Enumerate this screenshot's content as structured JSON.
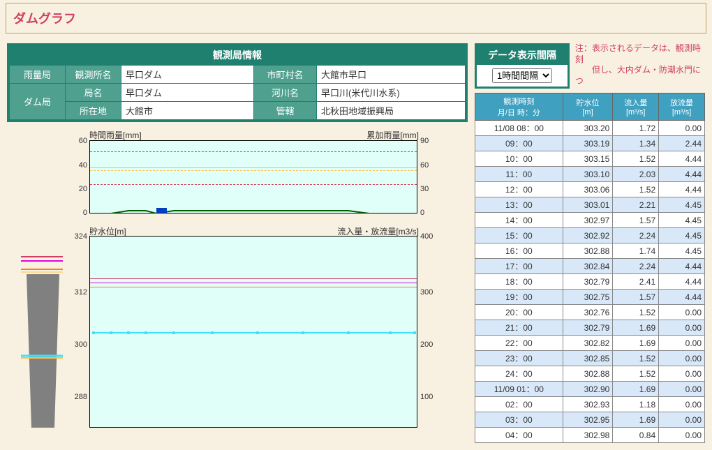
{
  "page_title": "ダムグラフ",
  "info": {
    "title": "観測局情報",
    "rows_left": [
      {
        "rowspan_label": "雨量局",
        "label": "観測所名",
        "value": "早口ダム"
      },
      {
        "rowspan_label": "ダム局",
        "label": "局名",
        "value": "早口ダム"
      },
      {
        "rowspan_label": null,
        "label": "所在地",
        "value": "大館市"
      }
    ],
    "rows_right": [
      {
        "label": "市町村名",
        "value": "大館市早口"
      },
      {
        "label": "河川名",
        "value": "早口川(米代川水系)"
      },
      {
        "label": "管轄",
        "value": "北秋田地域振興局"
      }
    ]
  },
  "interval": {
    "title": "データ表示間隔",
    "selected": "1時間間隔"
  },
  "note_top": "注：表示されるデータは、観測時刻",
  "note_bottom": "　　但し、大内ダム・防潮水門につ",
  "graph1": {
    "left_label": "時間雨量[mm]",
    "right_label": "累加雨量[mm]",
    "y_ticks": [
      "60",
      "40",
      "20",
      "0"
    ],
    "y2_ticks": [
      "90",
      "60",
      "30",
      "0"
    ]
  },
  "graph2": {
    "left_label": "貯水位[m]",
    "right_label": "流入量・放流量[m3/s]",
    "y_ticks": [
      "324",
      "312",
      "300",
      "288"
    ],
    "y2_ticks": [
      "400",
      "300",
      "200",
      "100"
    ]
  },
  "table": {
    "headers": [
      {
        "l1": "観測時刻",
        "l2": "月/日 時：分"
      },
      {
        "l1": "貯水位",
        "l2": "[m]"
      },
      {
        "l1": "流入量",
        "l2": "[m³/s]"
      },
      {
        "l1": "放流量",
        "l2": "[m³/s]"
      }
    ],
    "rows": [
      {
        "time": "11/08 08：00",
        "level": "303.20",
        "inflow": "1.72",
        "outflow": "0.00"
      },
      {
        "time": "09：00",
        "level": "303.19",
        "inflow": "1.34",
        "outflow": "2.44"
      },
      {
        "time": "10：00",
        "level": "303.15",
        "inflow": "1.52",
        "outflow": "4.44"
      },
      {
        "time": "11：00",
        "level": "303.10",
        "inflow": "2.03",
        "outflow": "4.44"
      },
      {
        "time": "12：00",
        "level": "303.06",
        "inflow": "1.52",
        "outflow": "4.44"
      },
      {
        "time": "13：00",
        "level": "303.01",
        "inflow": "2.21",
        "outflow": "4.45"
      },
      {
        "time": "14：00",
        "level": "302.97",
        "inflow": "1.57",
        "outflow": "4.45"
      },
      {
        "time": "15：00",
        "level": "302.92",
        "inflow": "2.24",
        "outflow": "4.45"
      },
      {
        "time": "16：00",
        "level": "302.88",
        "inflow": "1.74",
        "outflow": "4.45"
      },
      {
        "time": "17：00",
        "level": "302.84",
        "inflow": "2.24",
        "outflow": "4.44"
      },
      {
        "time": "18：00",
        "level": "302.79",
        "inflow": "2.41",
        "outflow": "4.44"
      },
      {
        "time": "19：00",
        "level": "302.75",
        "inflow": "1.57",
        "outflow": "4.44"
      },
      {
        "time": "20：00",
        "level": "302.76",
        "inflow": "1.52",
        "outflow": "0.00"
      },
      {
        "time": "21：00",
        "level": "302.79",
        "inflow": "1.69",
        "outflow": "0.00"
      },
      {
        "time": "22：00",
        "level": "302.82",
        "inflow": "1.69",
        "outflow": "0.00"
      },
      {
        "time": "23：00",
        "level": "302.85",
        "inflow": "1.52",
        "outflow": "0.00"
      },
      {
        "time": "24：00",
        "level": "302.88",
        "inflow": "1.52",
        "outflow": "0.00"
      },
      {
        "time": "11/09 01：00",
        "level": "302.90",
        "inflow": "1.69",
        "outflow": "0.00"
      },
      {
        "time": "02：00",
        "level": "302.93",
        "inflow": "1.18",
        "outflow": "0.00"
      },
      {
        "time": "03：00",
        "level": "302.95",
        "inflow": "1.69",
        "outflow": "0.00"
      },
      {
        "time": "04：00",
        "level": "302.98",
        "inflow": "0.84",
        "outflow": "0.00"
      }
    ]
  }
}
